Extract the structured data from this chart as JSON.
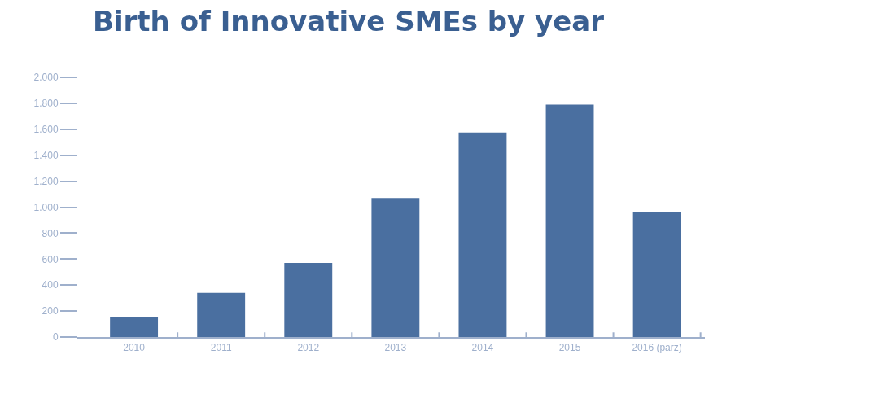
{
  "chart_data": {
    "type": "bar",
    "title": "Birth of Innovative SMEs by year",
    "categories": [
      "2010",
      "2011",
      "2012",
      "2013",
      "2014",
      "2015",
      "2016 (parz)"
    ],
    "values": [
      155,
      340,
      570,
      1070,
      1575,
      1790,
      965
    ],
    "color": "#4a6fa0",
    "ylim": [
      0,
      2000
    ],
    "yticks": [
      0,
      200,
      400,
      600,
      800,
      {
        "value": 1000,
        "label": "1.000"
      },
      {
        "value": 1200,
        "label": "1.200"
      },
      {
        "value": 1400,
        "label": "1.400"
      },
      {
        "value": 1600,
        "label": "1.600"
      },
      {
        "value": 1800,
        "label": "1.800"
      },
      {
        "value": 2000,
        "label": "2.000"
      }
    ],
    "legend": false
  }
}
